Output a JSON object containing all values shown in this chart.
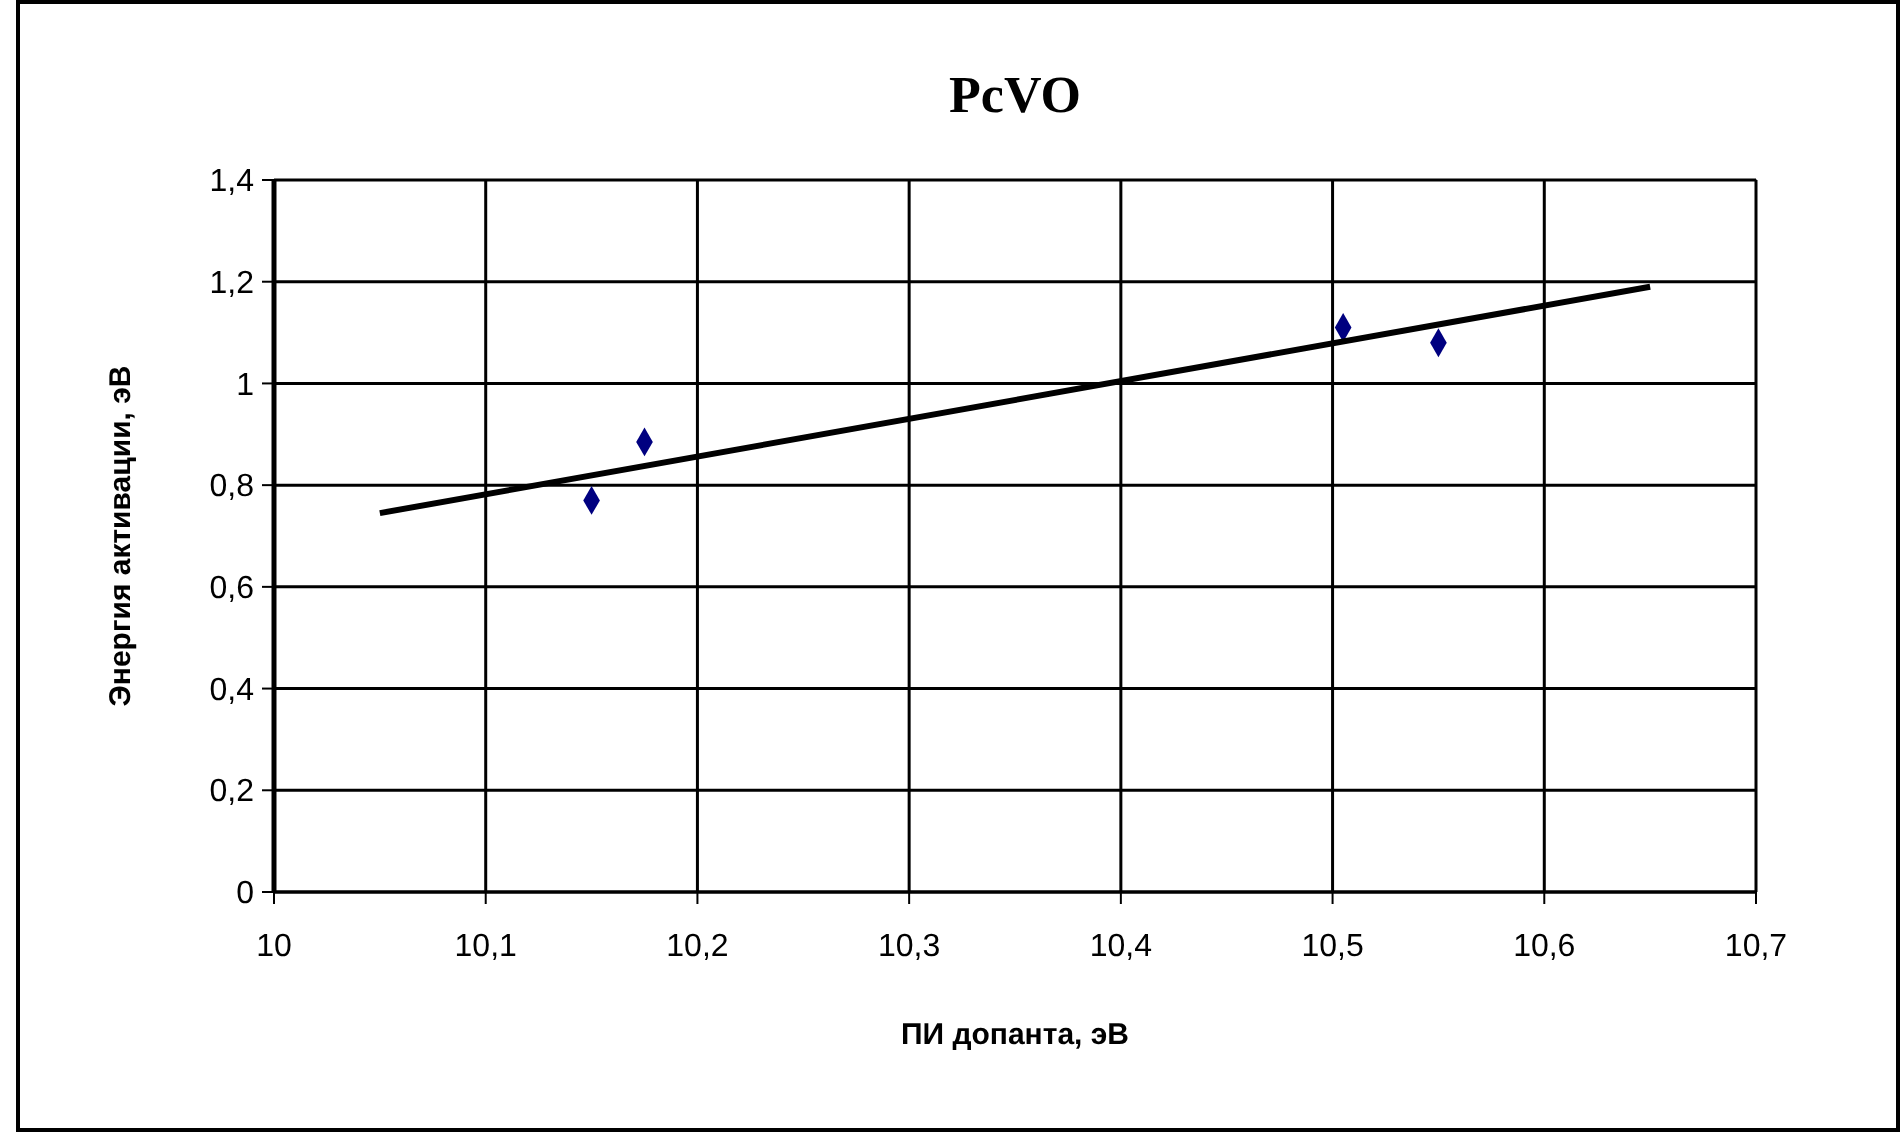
{
  "chart_data": {
    "type": "scatter",
    "title": "PcVO",
    "xlabel": "ПИ допанта, эВ",
    "ylabel": "Энергия активации, эВ",
    "xlim": [
      10,
      10.7
    ],
    "ylim": [
      0,
      1.4
    ],
    "xticks": [
      10,
      {
        "value": 10.1,
        "label": "10,1"
      },
      {
        "value": 10.2,
        "label": "10,2"
      },
      {
        "value": 10.3,
        "label": "10,3"
      },
      {
        "value": 10.4,
        "label": "10,4"
      },
      {
        "value": 10.5,
        "label": "10,5"
      },
      {
        "value": 10.6,
        "label": "10,6"
      },
      {
        "value": 10.7,
        "label": "10,7"
      }
    ],
    "yticks": [
      0,
      {
        "value": 0.2,
        "label": "0,2"
      },
      {
        "value": 0.4,
        "label": "0,4"
      },
      {
        "value": 0.6,
        "label": "0,6"
      },
      {
        "value": 0.8,
        "label": "0,8"
      },
      1,
      {
        "value": 1.2,
        "label": "1,2"
      },
      {
        "value": 1.4,
        "label": "1,4"
      }
    ],
    "grid": true,
    "marker": "diamond",
    "series": [
      {
        "color": "#000080",
        "x": [
          10.15,
          10.175,
          10.505,
          10.55
        ],
        "values": [
          0.77,
          0.885,
          1.11,
          1.08
        ]
      },
      {
        "type": "line",
        "color": "#000000",
        "x": [
          10.05,
          10.65
        ],
        "values": [
          0.745,
          1.19
        ],
        "marker": "none",
        "line_style": "solid"
      }
    ]
  }
}
